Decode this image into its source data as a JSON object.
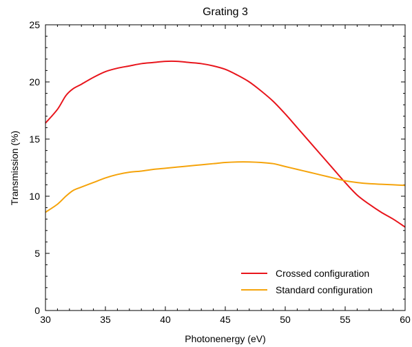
{
  "chart_data": {
    "type": "line",
    "title": "Grating 3",
    "xlabel": "Photonenergy (eV)",
    "ylabel": "Transmission (%)",
    "xlim": [
      30,
      60
    ],
    "ylim": [
      0,
      25
    ],
    "xticks": [
      30,
      35,
      40,
      45,
      50,
      55,
      60
    ],
    "yticks": [
      0,
      5,
      10,
      15,
      20,
      25
    ],
    "grid": false,
    "legend_position": "bottom-right",
    "series": [
      {
        "name": "Crossed configuration",
        "color": "#e8141b",
        "x": [
          30,
          31,
          31.7,
          32.3,
          33,
          34,
          35,
          36,
          37,
          38,
          39,
          40,
          41,
          42,
          43,
          44,
          45,
          46,
          47,
          48,
          49,
          50,
          51,
          52,
          53,
          54,
          55,
          56,
          57,
          58,
          59,
          60
        ],
        "y": [
          16.4,
          17.6,
          18.8,
          19.4,
          19.8,
          20.4,
          20.9,
          21.2,
          21.4,
          21.6,
          21.7,
          21.8,
          21.8,
          21.7,
          21.6,
          21.4,
          21.1,
          20.6,
          20.0,
          19.2,
          18.3,
          17.2,
          16.0,
          14.8,
          13.6,
          12.4,
          11.2,
          10.1,
          9.3,
          8.6,
          8.0,
          7.3
        ]
      },
      {
        "name": "Standard configuration",
        "color": "#f5a30a",
        "x": [
          30,
          31,
          31.7,
          32.3,
          33,
          34,
          35,
          36,
          37,
          38,
          39,
          40,
          41,
          42,
          43,
          44,
          45,
          46,
          47,
          48,
          49,
          50,
          51,
          52,
          53,
          54,
          55,
          56,
          57,
          58,
          59,
          60
        ],
        "y": [
          8.6,
          9.3,
          10.0,
          10.5,
          10.8,
          11.2,
          11.6,
          11.9,
          12.1,
          12.2,
          12.35,
          12.45,
          12.55,
          12.65,
          12.75,
          12.85,
          12.95,
          13.0,
          13.0,
          12.95,
          12.85,
          12.6,
          12.35,
          12.1,
          11.85,
          11.6,
          11.35,
          11.2,
          11.1,
          11.05,
          11.0,
          10.95
        ]
      }
    ]
  }
}
